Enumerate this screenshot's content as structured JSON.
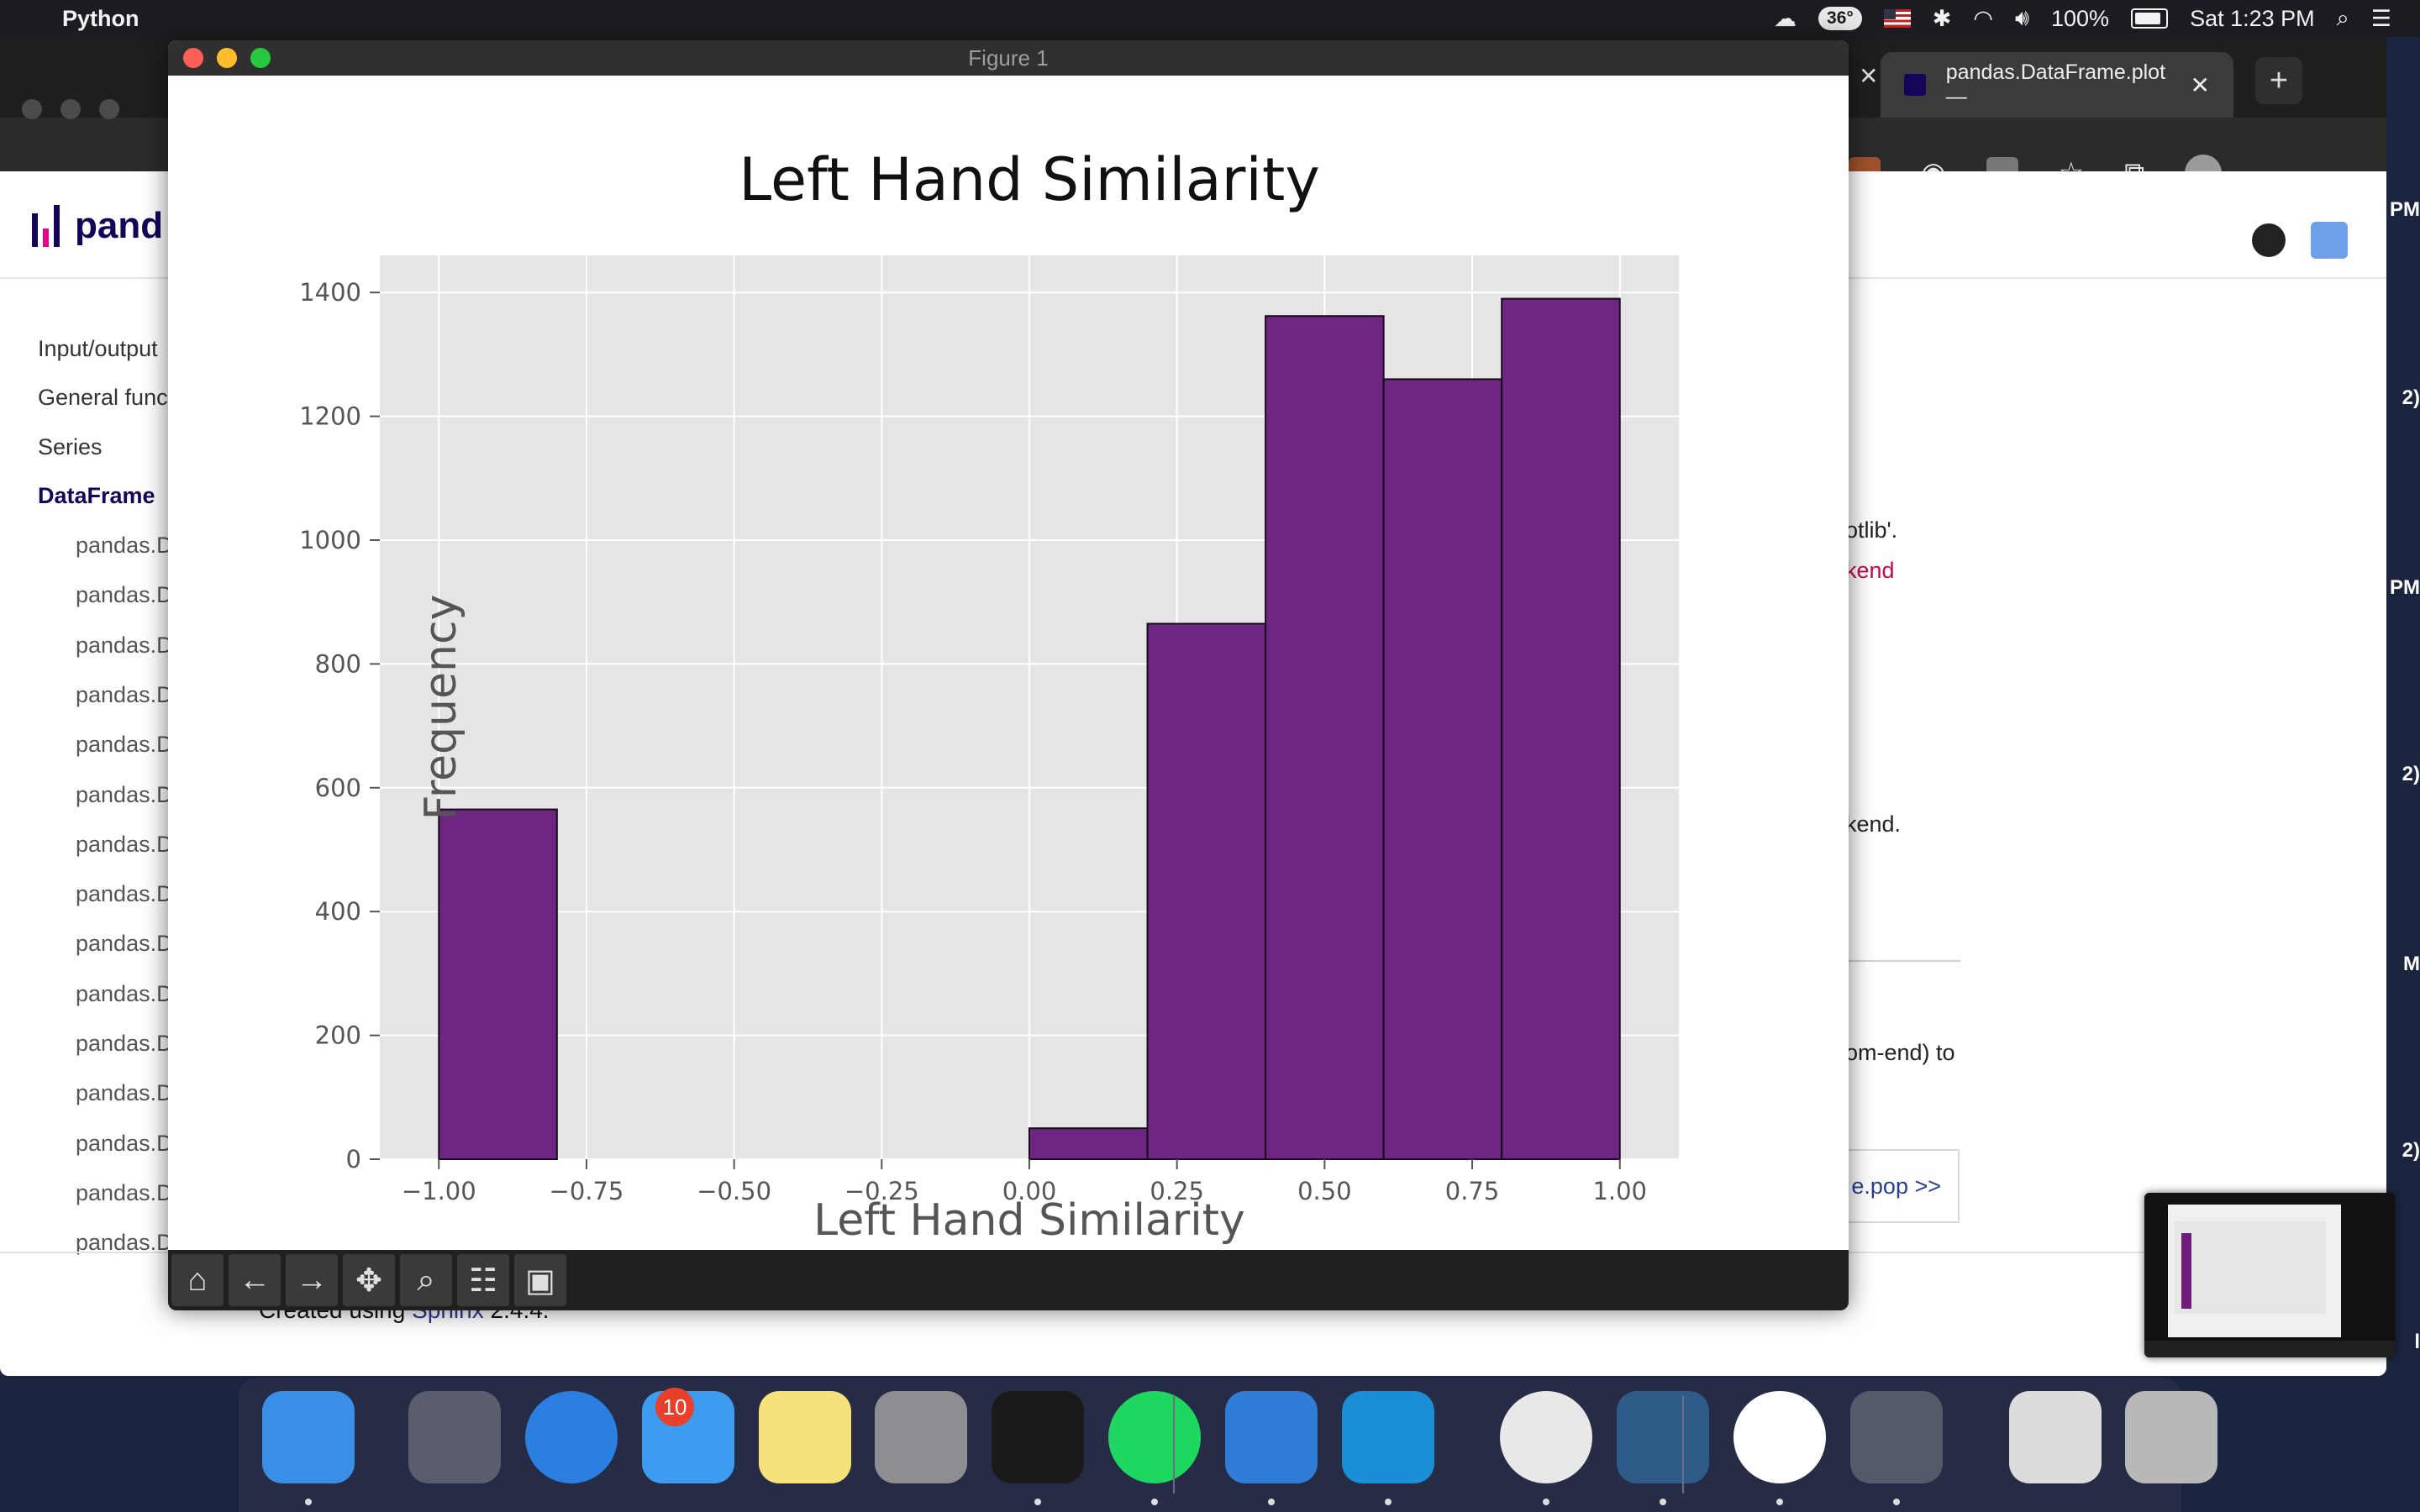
{
  "menubar": {
    "app_name": "Python",
    "temperature": "36°",
    "battery": "100%",
    "clock": "Sat 1:23 PM"
  },
  "browser": {
    "tab_title": "pandas.DataFrame.plot —",
    "logo_text": "pand",
    "sidebar": {
      "items": [
        "Input/output",
        "General funct",
        "Series",
        "DataFrame"
      ],
      "subitems": [
        "pandas.D",
        "pandas.D",
        "pandas.D",
        "pandas.D",
        "pandas.D",
        "pandas.D",
        "pandas.D",
        "pandas.D",
        "pandas.D",
        "pandas.D",
        "pandas.D",
        "pandas.D",
        "pandas.D",
        "pandas.D",
        "pandas.D"
      ]
    },
    "content_fragments": {
      "line1": "otlib'.",
      "line2": "kend",
      "line3": "kend.",
      "line4": "om-end) to",
      "next_button": "e.pop >>"
    },
    "footer": {
      "prefix": "Created using ",
      "link": "Sphinx",
      "suffix": " 2.4.4."
    },
    "edge_fragments": [
      "PM",
      "2)",
      "PM",
      "2)",
      "M",
      "2)",
      "l"
    ]
  },
  "figure_window": {
    "title": "Figure 1",
    "toolbar": [
      "home-icon",
      "back-icon",
      "forward-icon",
      "pan-icon",
      "zoom-icon",
      "configure-icon",
      "save-icon"
    ]
  },
  "chart_data": {
    "type": "bar",
    "title": "Left Hand Similarity",
    "xlabel": "Left Hand Similarity",
    "ylabel": "Frequency",
    "bins": [
      {
        "x0": -1.0,
        "x1": -0.8,
        "value": 565
      },
      {
        "x0": -0.8,
        "x1": -0.6,
        "value": 0
      },
      {
        "x0": -0.6,
        "x1": -0.4,
        "value": 0
      },
      {
        "x0": -0.4,
        "x1": -0.2,
        "value": 0
      },
      {
        "x0": -0.2,
        "x1": 0.0,
        "value": 0
      },
      {
        "x0": 0.0,
        "x1": 0.2,
        "value": 50
      },
      {
        "x0": 0.2,
        "x1": 0.4,
        "value": 865
      },
      {
        "x0": 0.4,
        "x1": 0.6,
        "value": 1362
      },
      {
        "x0": 0.6,
        "x1": 0.8,
        "value": 1260
      },
      {
        "x0": 0.8,
        "x1": 1.0,
        "value": 1390
      }
    ],
    "xlim": [
      -1.1,
      1.1
    ],
    "ylim": [
      0,
      1460
    ],
    "xticks": [
      "−1.00",
      "−0.75",
      "−0.50",
      "−0.25",
      "0.00",
      "0.25",
      "0.50",
      "0.75",
      "1.00"
    ],
    "xtick_values": [
      -1.0,
      -0.75,
      -0.5,
      -0.25,
      0.0,
      0.25,
      0.5,
      0.75,
      1.0
    ],
    "yticks": [
      "0",
      "200",
      "400",
      "600",
      "800",
      "1000",
      "1200",
      "1400"
    ],
    "ytick_values": [
      0,
      200,
      400,
      600,
      800,
      1000,
      1200,
      1400
    ],
    "grid": true,
    "bar_color": "#6e2682",
    "edge_color": "#1a0a20",
    "background": "#e5e5e5"
  },
  "dock": {
    "apps": [
      "finder-icon",
      "launchpad-icon",
      "safari-icon",
      "messages-icon",
      "notes-icon",
      "system-preferences-icon",
      "terminal-icon",
      "spotify-icon",
      "vscode-icon",
      "edge-icon",
      "chrome-icon",
      "mysql-workbench-icon",
      "mongodb-compass-icon",
      "python-launcher-icon",
      "screenshot-preview-icon",
      "trash-icon"
    ],
    "messages_badge": "10"
  }
}
